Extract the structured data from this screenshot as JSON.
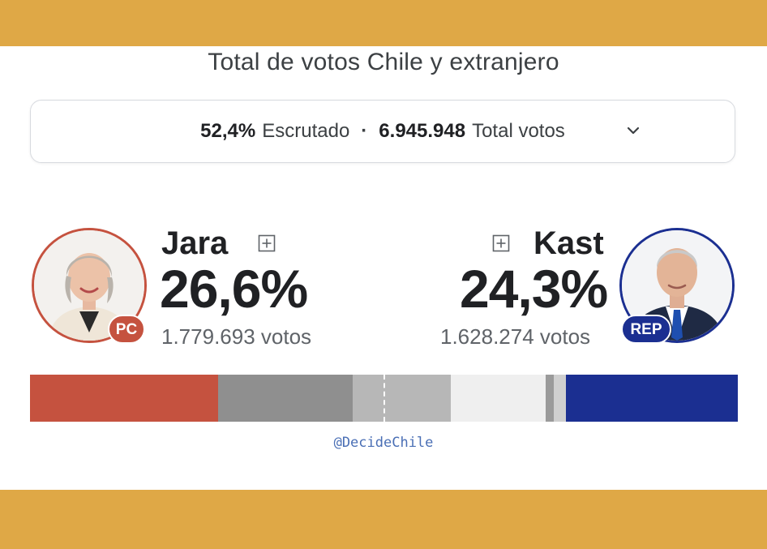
{
  "header": {
    "title": "Total de votos Chile y extranjero"
  },
  "summary": {
    "scrutinized_value": "52,4%",
    "scrutinized_label": "Escrutado",
    "separator": "·",
    "total_value": "6.945.948",
    "total_label": "Total votos",
    "expand_icon": "chevron-down-icon"
  },
  "candidates": [
    {
      "name": "Jara",
      "party": "PC",
      "percent": "26,6%",
      "votes": "1.779.693 votos",
      "color": "#c5523f",
      "expand_icon": "plus-square-icon"
    },
    {
      "name": "Kast",
      "party": "REP",
      "percent": "24,3%",
      "votes": "1.628.274 votos",
      "color": "#1b2f91",
      "expand_icon": "plus-square-icon"
    }
  ],
  "results_bar": {
    "segments": [
      {
        "share": 26.6,
        "color": "#c5523f"
      },
      {
        "share": 19.0,
        "color": "#8f8f8f"
      },
      {
        "share": 13.8,
        "color": "#b7b7b7"
      },
      {
        "share": 13.4,
        "color": "#efefef"
      },
      {
        "share": 1.2,
        "color": "#9a9a9a"
      },
      {
        "share": 1.7,
        "color": "#cfcfcf"
      },
      {
        "share": 24.3,
        "color": "#1b2f91"
      }
    ]
  },
  "footer": {
    "credit": "@DecideChile"
  }
}
